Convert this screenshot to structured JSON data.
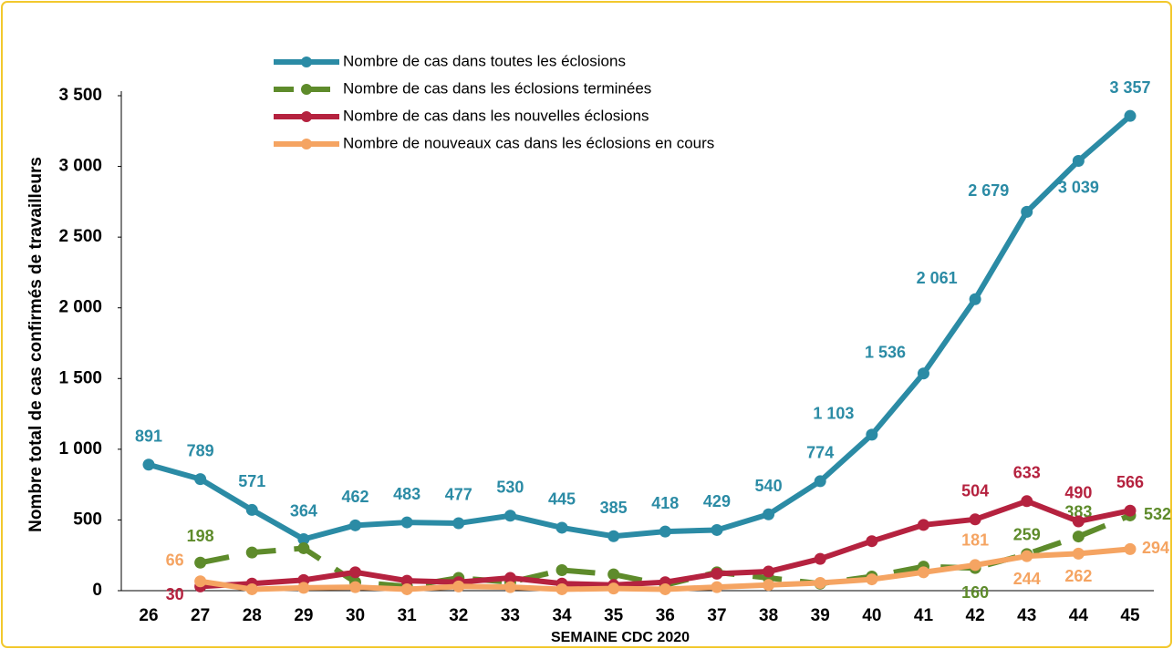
{
  "chart_data": {
    "type": "line",
    "y_label": "Nombre total de cas confirmés de travailleurs",
    "x_label": "SEMAINE  CDC 2020",
    "categories": [
      "26",
      "27",
      "28",
      "29",
      "30",
      "31",
      "32",
      "33",
      "34",
      "35",
      "36",
      "37",
      "38",
      "39",
      "40",
      "41",
      "42",
      "43",
      "44",
      "45"
    ],
    "ylim": [
      0,
      3500
    ],
    "yticks": [
      0,
      500,
      {
        "value": 1000,
        "label": "1 000"
      },
      {
        "value": 1500,
        "label": "1 500"
      },
      {
        "value": 2000,
        "label": "2 000"
      },
      {
        "value": 2500,
        "label": "2 500"
      },
      {
        "value": 3000,
        "label": "3 000"
      },
      {
        "value": 3500,
        "label": "3 500"
      }
    ],
    "series": [
      {
        "name": "Nombre de cas dans toutes les éclosions",
        "color": "#2b8ba5",
        "dashed": false,
        "values": [
          891,
          789,
          571,
          364,
          462,
          483,
          477,
          530,
          445,
          385,
          418,
          429,
          540,
          774,
          1103,
          1536,
          2061,
          2679,
          3039,
          3357
        ],
        "value_labels": [
          "891",
          "789",
          "571",
          "364",
          "462",
          "483",
          "477",
          "530",
          "445",
          "385",
          "418",
          "429",
          "540",
          "774",
          "1 103",
          "1 536",
          "2 061",
          "2 679",
          "3 039",
          "3 357"
        ]
      },
      {
        "name": "Nombre de cas dans les éclosions terminées",
        "color": "#5e8b2b",
        "dashed": true,
        "values": [
          null,
          198,
          270,
          300,
          60,
          30,
          90,
          60,
          145,
          115,
          40,
          130,
          90,
          50,
          100,
          170,
          160,
          259,
          383,
          532
        ],
        "value_labels": [
          null,
          "198",
          null,
          null,
          null,
          null,
          null,
          null,
          null,
          null,
          null,
          null,
          null,
          null,
          null,
          null,
          "160",
          "259",
          "383",
          "532"
        ]
      },
      {
        "name": "Nombre de cas dans les nouvelles éclosions",
        "color": "#b5223f",
        "dashed": false,
        "values": [
          null,
          30,
          50,
          75,
          130,
          70,
          60,
          90,
          50,
          40,
          60,
          120,
          135,
          225,
          350,
          465,
          504,
          633,
          490,
          566
        ],
        "value_labels": [
          null,
          "30",
          null,
          null,
          null,
          null,
          null,
          null,
          null,
          null,
          null,
          null,
          null,
          null,
          null,
          null,
          "504",
          "633",
          "490",
          "566"
        ]
      },
      {
        "name": "Nombre de nouveaux cas dans les éclosions en cours",
        "color": "#f5a462",
        "dashed": false,
        "values": [
          null,
          66,
          10,
          20,
          25,
          10,
          30,
          25,
          10,
          15,
          10,
          25,
          40,
          55,
          80,
          130,
          181,
          244,
          262,
          294
        ],
        "value_labels": [
          null,
          "66",
          null,
          null,
          null,
          null,
          null,
          null,
          null,
          null,
          null,
          null,
          null,
          null,
          null,
          null,
          "181",
          "244",
          "262",
          "294"
        ]
      }
    ]
  }
}
